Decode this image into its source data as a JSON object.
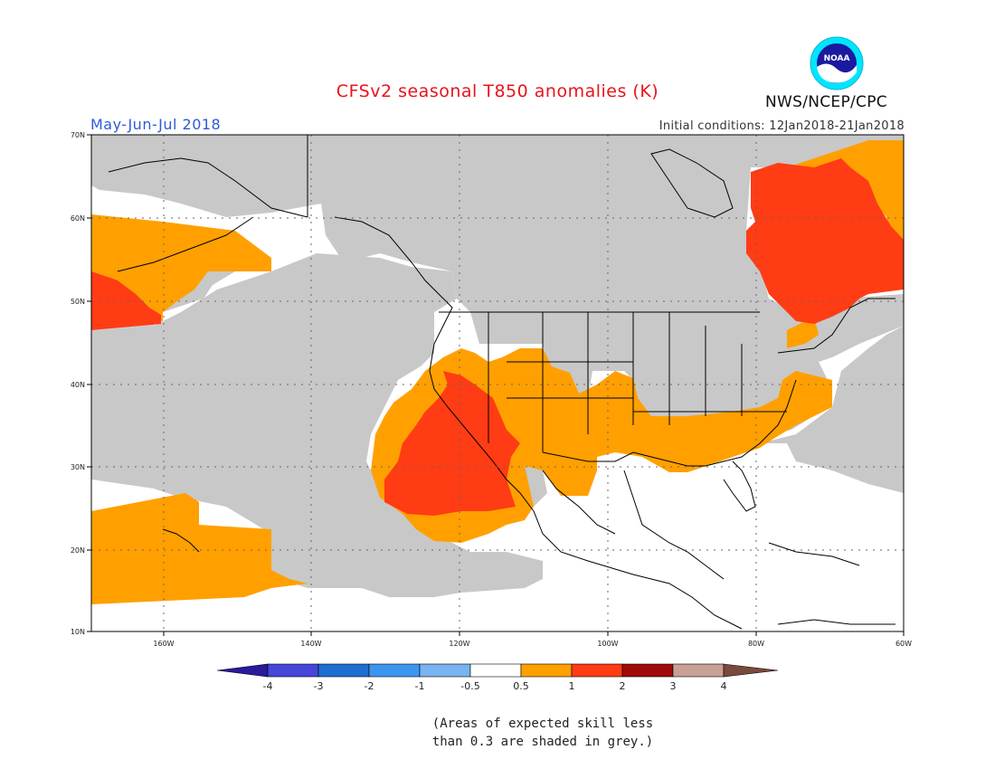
{
  "header": {
    "title": "CFSv2 seasonal T850 anomalies (K)",
    "period": "May-Jun-Jul 2018",
    "initial_conditions": "Initial conditions: 12Jan2018-21Jan2018",
    "agency": "NWS/NCEP/CPC",
    "logo_text": "NOAA"
  },
  "map": {
    "lon_range": [
      -173,
      -60
    ],
    "lat_range": [
      10,
      70
    ],
    "lat_labels": [
      "10N",
      "20N",
      "30N",
      "40N",
      "50N",
      "60N",
      "70N"
    ],
    "lon_labels": [
      "160W",
      "140W",
      "120W",
      "100W",
      "80W",
      "60W"
    ],
    "shading_legend": {
      "grey": "skill less than 0.3",
      "orange": "0.5 to 1",
      "red": "1 to 2"
    },
    "colors": {
      "grey": "#c8c8c8",
      "orange": "#ffa000",
      "red": "#ff3c14",
      "coast": "#000000"
    }
  },
  "colorbar": {
    "labels": [
      "-4",
      "-3",
      "-2",
      "-1",
      "-0.5",
      "0.5",
      "1",
      "2",
      "3",
      "4"
    ],
    "colors": [
      "#2a1a9c",
      "#4646d8",
      "#1e6ed2",
      "#3c96f0",
      "#78b4f0",
      "#ffffff",
      "#ffa000",
      "#ff3c14",
      "#a00a0a",
      "#c8a096",
      "#7a4a3c"
    ]
  },
  "notes": {
    "line1": "(Areas of expected skill less",
    "line2": "than 0.3 are shaded in grey.)"
  }
}
